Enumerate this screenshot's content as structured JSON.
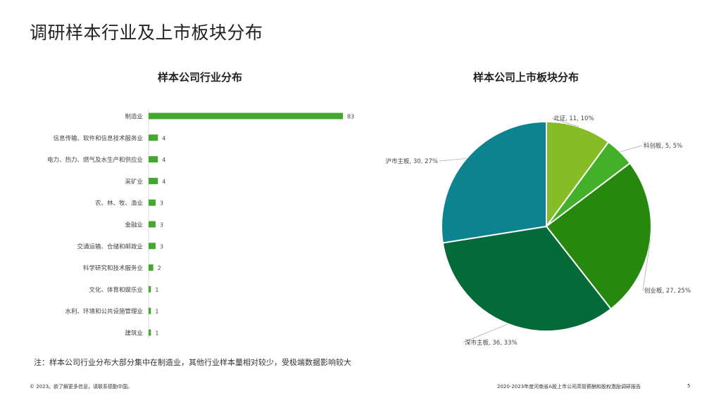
{
  "page": {
    "title": "调研样本行业及上市板块分布",
    "note": "注：样本公司行业分布大部分集中在制造业，其他行业样本量相对较少，受极端数据影响较大",
    "footer_left": "© 2023。欲了解更多信息，请联系德勤中国。",
    "footer_right": "2020-2023年度河南省A股上市公司高管薪酬和股权激励调研报告",
    "page_number": "5"
  },
  "chart_data": [
    {
      "type": "bar",
      "orientation": "horizontal",
      "title": "样本公司行业分布",
      "categories": [
        "制造业",
        "信息传输、软件和信息技术服务业",
        "电力、热力、燃气及水生产和供应业",
        "采矿业",
        "农、林、牧、渔业",
        "金融业",
        "交通运输、仓储和邮政业",
        "科学研究和技术服务业",
        "文化、体育和娱乐业",
        "水利、环境和公共设施管理业",
        "建筑业"
      ],
      "values": [
        83,
        4,
        4,
        4,
        3,
        3,
        3,
        2,
        1,
        1,
        1
      ],
      "color": "#43A92E",
      "data_labels": true,
      "grid": false,
      "xlim": [
        0,
        83
      ]
    },
    {
      "type": "pie",
      "title": "样本公司上市板块分布",
      "slices": [
        {
          "name": "北证",
          "value": 11,
          "percent": 10,
          "label": "北证, 11, 10%",
          "color": "#86BC25"
        },
        {
          "name": "科创板",
          "value": 5,
          "percent": 5,
          "label": "科创板, 5, 5%",
          "color": "#43B02A"
        },
        {
          "name": "创业板",
          "value": 27,
          "percent": 25,
          "label": "创业板, 27, 25%",
          "color": "#26890D"
        },
        {
          "name": "深市主板",
          "value": 36,
          "percent": 33,
          "label": "深市主板, 36, 33%",
          "color": "#046A38"
        },
        {
          "name": "沪市主板",
          "value": 30,
          "percent": 27,
          "label": "沪市主板, 30, 27%",
          "color": "#0D8390"
        }
      ]
    }
  ]
}
